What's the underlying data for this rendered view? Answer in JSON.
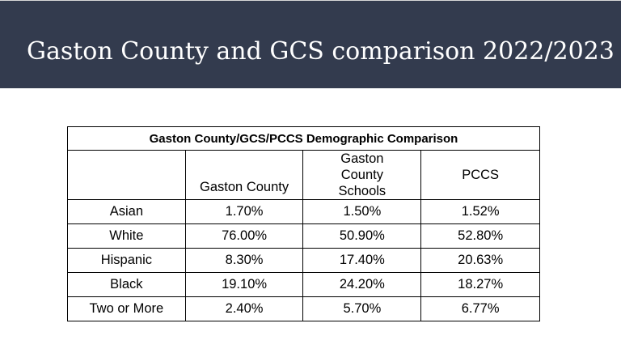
{
  "slide": {
    "title": "Gaston County and GCS comparison 2022/2023"
  },
  "table": {
    "caption": "Gaston County/GCS/PCCS Demographic Comparison",
    "columns": [
      "",
      "Gaston County",
      "Gaston County Schools",
      "PCCS"
    ],
    "rows": [
      {
        "label": "Asian",
        "gaston_county": "1.70%",
        "gcs": "1.50%",
        "pccs": "1.52%"
      },
      {
        "label": "White",
        "gaston_county": "76.00%",
        "gcs": "50.90%",
        "pccs": "52.80%"
      },
      {
        "label": "Hispanic",
        "gaston_county": "8.30%",
        "gcs": "17.40%",
        "pccs": "20.63%"
      },
      {
        "label": "Black",
        "gaston_county": "19.10%",
        "gcs": "24.20%",
        "pccs": "18.27%"
      },
      {
        "label": "Two or More",
        "gaston_county": "2.40%",
        "gcs": "5.70%",
        "pccs": "6.77%"
      }
    ]
  }
}
